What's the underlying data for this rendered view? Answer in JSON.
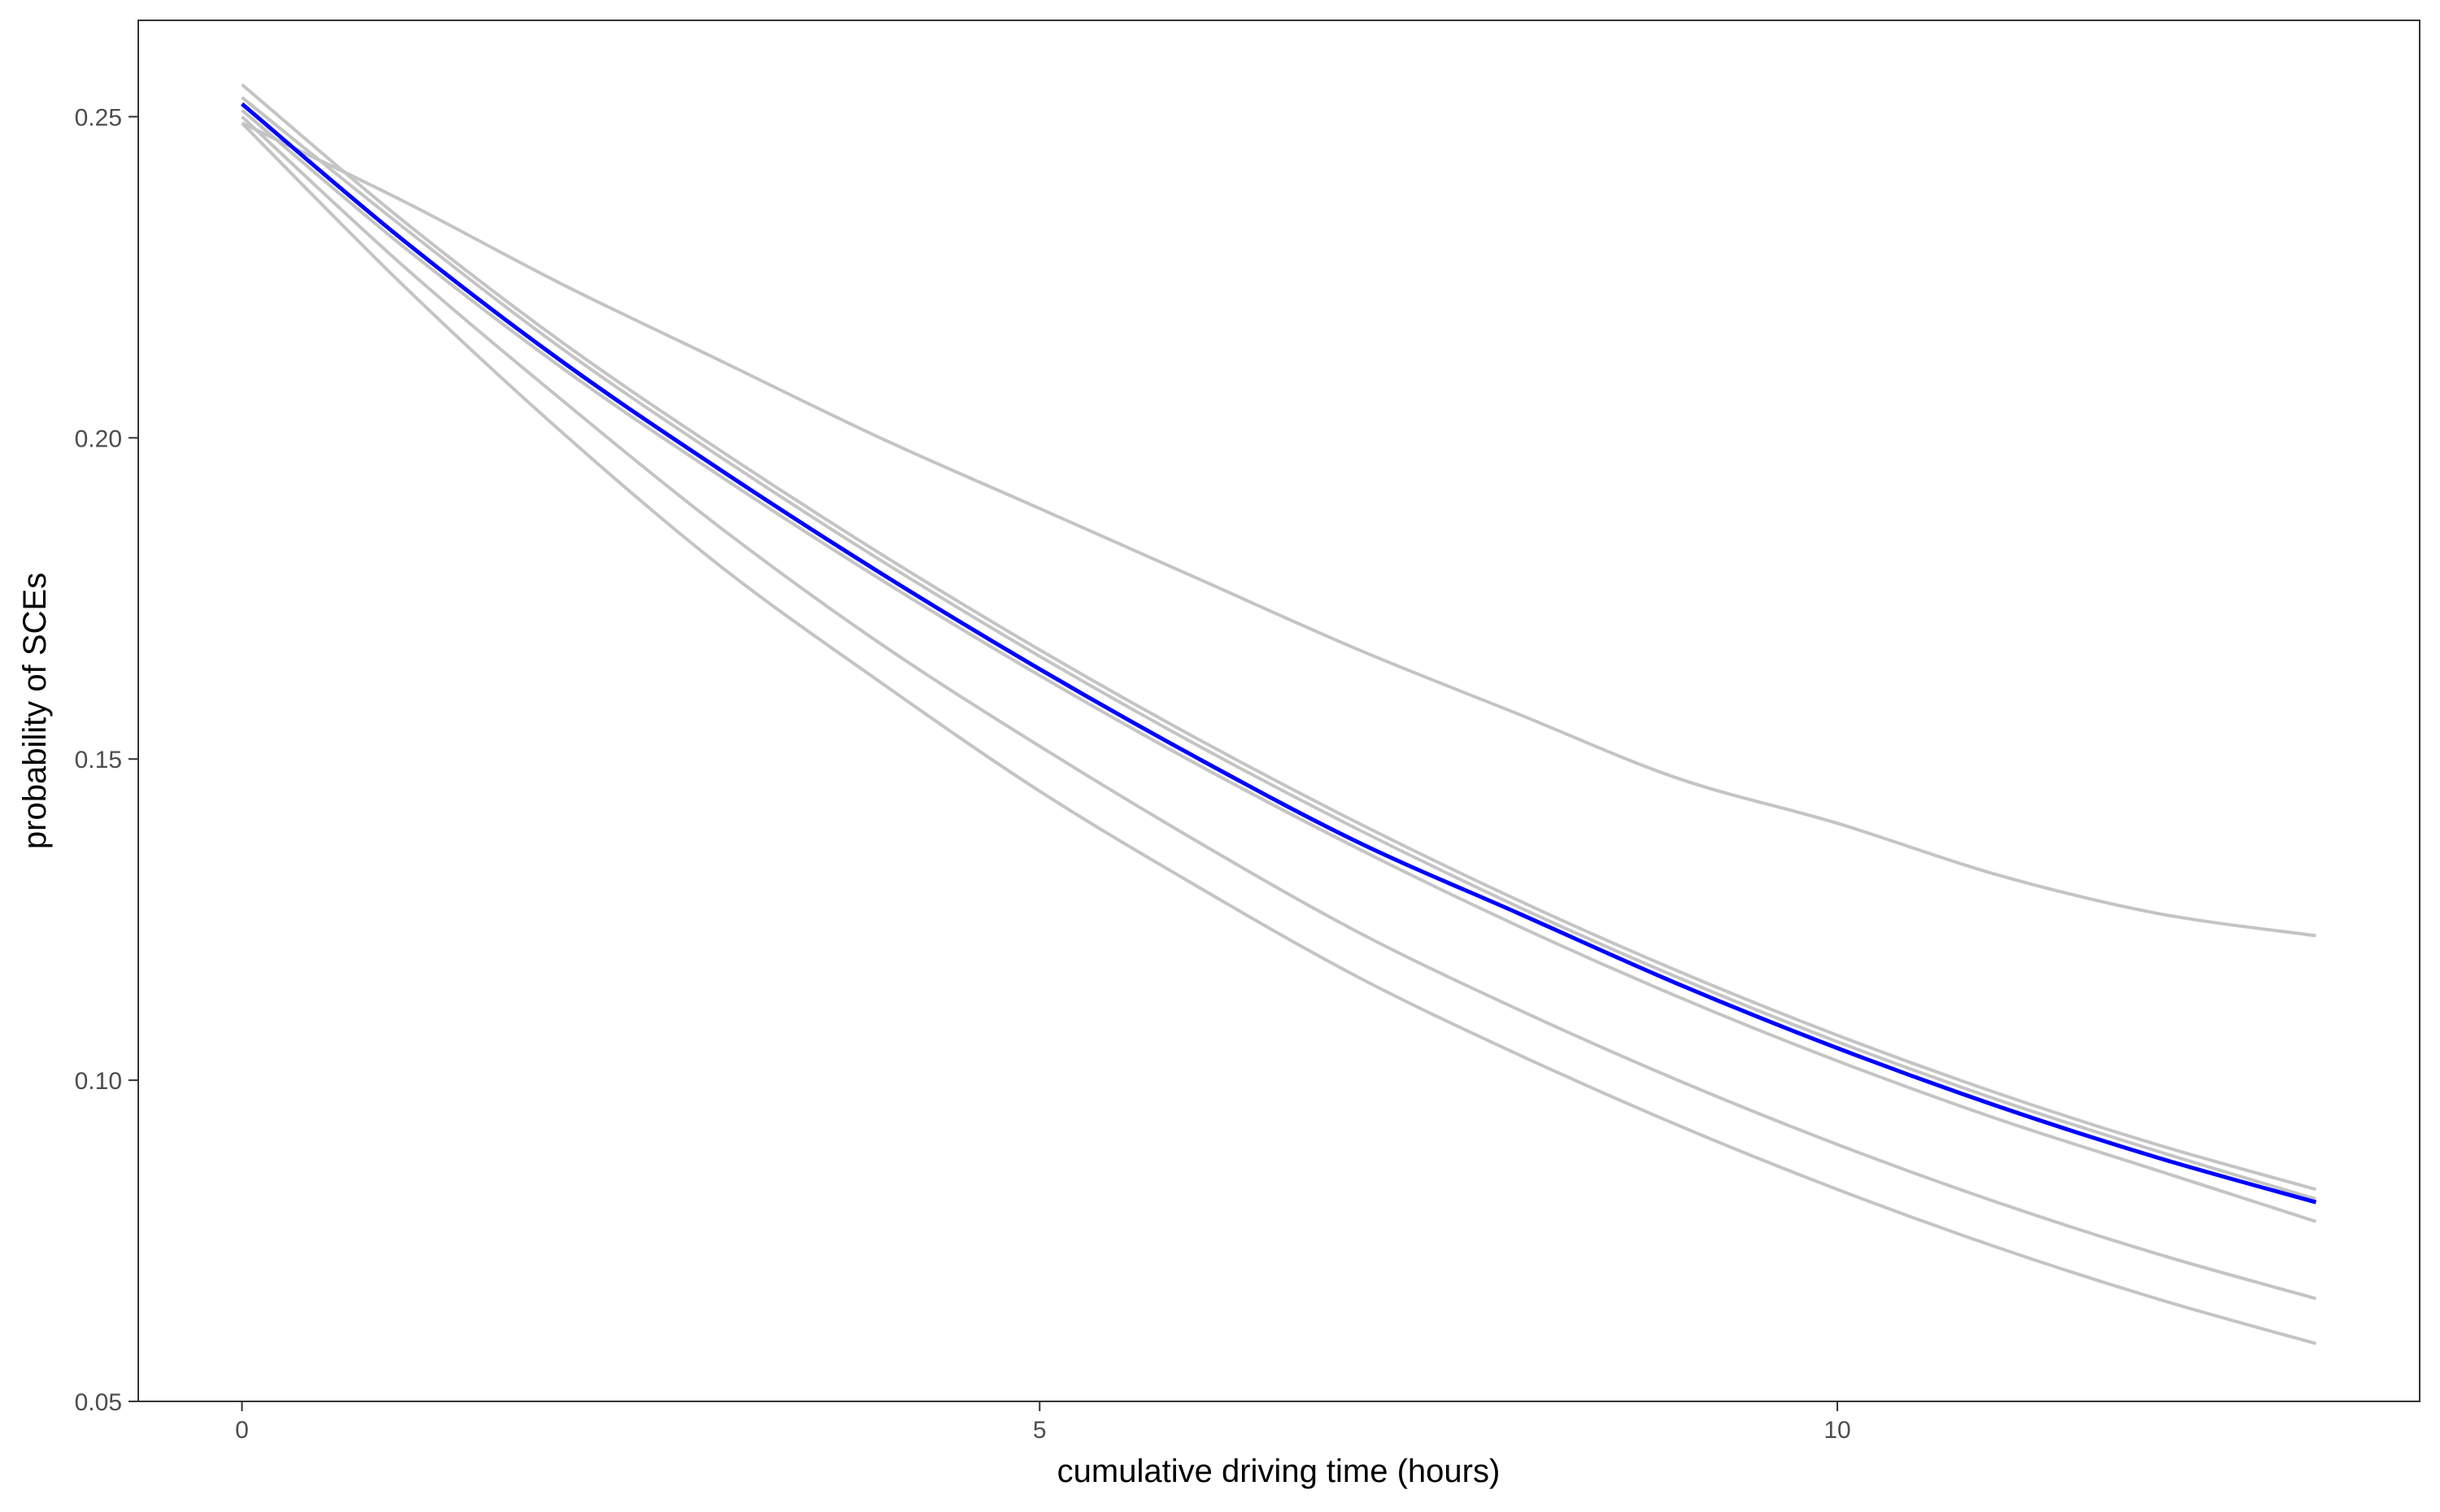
{
  "chart_data": {
    "type": "line",
    "title": "",
    "xlabel": "cumulative driving time (hours)",
    "ylabel": "probability of SCEs",
    "xlim": [
      -0.65,
      13.65
    ],
    "ylim": [
      0.05,
      0.265
    ],
    "x_ticks": [
      0,
      5,
      10
    ],
    "x_tick_labels": [
      "0",
      "5",
      "10"
    ],
    "y_ticks": [
      0.05,
      0.1,
      0.15,
      0.2,
      0.25
    ],
    "y_tick_labels": [
      "0.05",
      "0.10",
      "0.15",
      "0.20",
      "0.25"
    ],
    "grid": false,
    "legend": "none",
    "x": [
      0,
      1,
      2,
      3,
      4,
      5,
      6,
      7,
      8,
      9,
      10,
      11,
      12,
      13
    ],
    "series": [
      {
        "color": "#c4c4c4",
        "emphasis": false,
        "values": [
          0.249,
          0.237,
          0.224,
          0.212,
          0.2,
          0.189,
          0.178,
          0.167,
          0.157,
          0.147,
          0.14,
          0.132,
          0.126,
          0.1225
        ]
      },
      {
        "color": "#c4c4c4",
        "emphasis": false,
        "values": [
          0.255,
          0.234,
          0.215,
          0.198,
          0.182,
          0.167,
          0.153,
          0.14,
          0.128,
          0.117,
          0.107,
          0.098,
          0.09,
          0.083
        ]
      },
      {
        "color": "#c4c4c4",
        "emphasis": false,
        "values": [
          0.253,
          0.233,
          0.214,
          0.197,
          0.181,
          0.166,
          0.152,
          0.139,
          0.127,
          0.116,
          0.106,
          0.097,
          0.089,
          0.0815
        ]
      },
      {
        "color": "#c4c4c4",
        "emphasis": false,
        "values": [
          0.251,
          0.23,
          0.211,
          0.194,
          0.178,
          0.163,
          0.149,
          0.136,
          0.124,
          0.113,
          0.103,
          0.094,
          0.086,
          0.078
        ]
      },
      {
        "color": "#c4c4c4",
        "emphasis": false,
        "values": [
          0.25,
          0.227,
          0.206,
          0.186,
          0.168,
          0.152,
          0.137,
          0.123,
          0.111,
          0.1,
          0.09,
          0.081,
          0.073,
          0.066
        ]
      },
      {
        "color": "#c4c4c4",
        "emphasis": false,
        "values": [
          0.249,
          0.224,
          0.201,
          0.18,
          0.162,
          0.145,
          0.13,
          0.116,
          0.104,
          0.093,
          0.083,
          0.074,
          0.066,
          0.059
        ]
      },
      {
        "color": "#0000ff",
        "emphasis": true,
        "values": [
          0.252,
          0.231,
          0.212,
          0.195,
          0.179,
          0.164,
          0.15,
          0.137,
          0.126,
          0.115,
          0.105,
          0.096,
          0.088,
          0.081
        ]
      }
    ]
  }
}
